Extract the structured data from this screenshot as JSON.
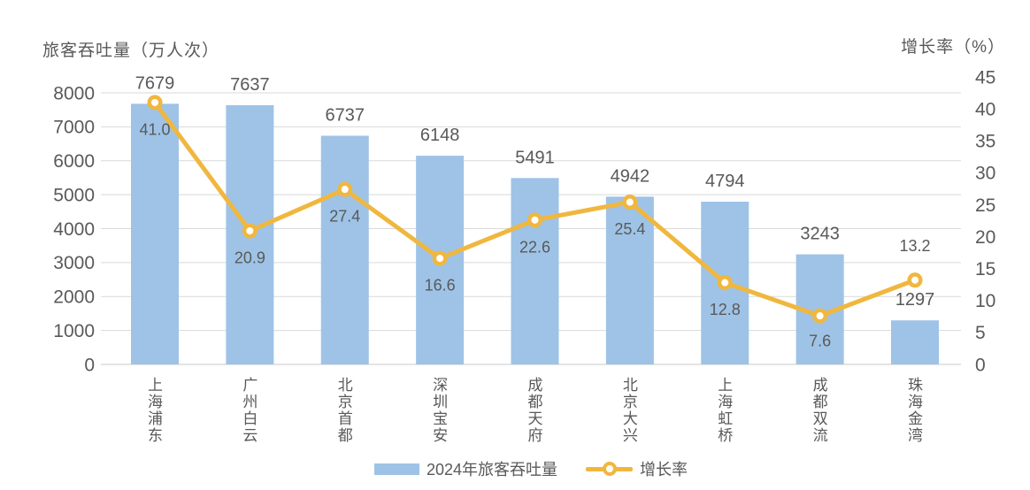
{
  "chart_data": {
    "type": "bar",
    "combo": "bar+line",
    "categories": [
      "上海浦东",
      "广州白云",
      "北京首都",
      "深圳宝安",
      "成都天府",
      "北京大兴",
      "上海虹桥",
      "成都双流",
      "珠海金湾"
    ],
    "series": [
      {
        "name": "2024年旅客吞吐量",
        "type": "bar",
        "axis": "left",
        "color": "#9EC3E6",
        "values": [
          7679,
          7637,
          6737,
          6148,
          5491,
          4942,
          4794,
          3243,
          1297
        ],
        "labels": [
          "7679",
          "7637",
          "6737",
          "6148",
          "5491",
          "4942",
          "4794",
          "3243",
          "1297"
        ]
      },
      {
        "name": "增长率",
        "type": "line",
        "axis": "right",
        "color": "#F0B73F",
        "marker": "hollow-circle",
        "values": [
          41.0,
          20.9,
          27.4,
          16.6,
          22.6,
          25.4,
          12.8,
          7.6,
          13.2
        ],
        "labels": [
          "41.0",
          "20.9",
          "27.4",
          "16.6",
          "22.6",
          "25.4",
          "12.8",
          "7.6",
          "13.2"
        ]
      }
    ],
    "left_axis": {
      "title": "旅客吞吐量（万人次）",
      "min": 0,
      "max": 8000,
      "step": 1000
    },
    "right_axis": {
      "title": "增长率（%）",
      "min": 0,
      "max": 45,
      "step": 5
    },
    "legend_position": "bottom",
    "grid": true,
    "colors": {
      "text": "#595959",
      "gridline": "#D9D9D9",
      "axis_line": "#C9C9C9",
      "background": "#FFFFFF"
    }
  }
}
